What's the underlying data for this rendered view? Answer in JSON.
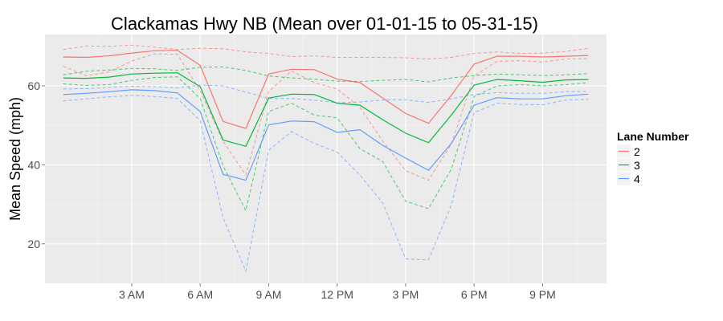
{
  "chart_data": {
    "type": "line",
    "title": "Clackamas Hwy NB (Mean over 01-01-15 to 05-31-15)",
    "xlabel": "",
    "ylabel": "Mean Speed (mph)",
    "hours": [
      0,
      1,
      2,
      3,
      4,
      5,
      6,
      7,
      8,
      9,
      10,
      11,
      12,
      13,
      14,
      15,
      16,
      17,
      18,
      19,
      20,
      21,
      22,
      23
    ],
    "xlim": [
      -0.8,
      23.8
    ],
    "ylim": [
      10,
      73
    ],
    "x_ticks": [
      {
        "value": 3,
        "label": "3 AM"
      },
      {
        "value": 6,
        "label": "6 AM"
      },
      {
        "value": 9,
        "label": "9 AM"
      },
      {
        "value": 12,
        "label": "12 PM"
      },
      {
        "value": 15,
        "label": "3 PM"
      },
      {
        "value": 18,
        "label": "6 PM"
      },
      {
        "value": 21,
        "label": "9 PM"
      }
    ],
    "y_ticks": [
      {
        "value": 20,
        "label": "20"
      },
      {
        "value": 40,
        "label": "40"
      },
      {
        "value": 60,
        "label": "60"
      }
    ],
    "grid": true,
    "legend": {
      "title": "Lane Number",
      "position": "right"
    },
    "series": [
      {
        "name": "2",
        "color": "#F8766D",
        "mean": [
          67.3,
          67.2,
          67.6,
          68.3,
          68.9,
          69.0,
          65.2,
          51.0,
          49.2,
          63.0,
          64.2,
          64.1,
          61.7,
          60.8,
          56.9,
          53.0,
          50.5,
          57.6,
          65.5,
          67.5,
          67.5,
          67.3,
          67.5,
          67.7
        ],
        "upper": [
          69.2,
          70.1,
          70.0,
          70.3,
          69.8,
          69.2,
          69.5,
          69.4,
          68.6,
          68.2,
          67.4,
          67.6,
          67.2,
          67.2,
          67.2,
          67.1,
          66.8,
          67.2,
          68.2,
          68.6,
          68.2,
          68.3,
          68.7,
          69.5
        ],
        "lower": [
          65.0,
          62.6,
          63.5,
          66.3,
          68.1,
          68.0,
          58.8,
          46.0,
          37.4,
          58.5,
          63.8,
          60.8,
          59.2,
          54.5,
          46.0,
          38.5,
          36.1,
          45.2,
          62.5,
          66.2,
          66.4,
          66.0,
          66.8,
          66.9
        ]
      },
      {
        "name": "3",
        "color": "#00BA38",
        "mean": [
          62.0,
          61.9,
          62.2,
          63.0,
          63.2,
          63.3,
          59.8,
          46.3,
          44.7,
          56.9,
          57.9,
          57.8,
          55.6,
          55.1,
          51.4,
          48.0,
          45.6,
          52.6,
          60.2,
          61.6,
          61.3,
          60.9,
          61.5,
          61.6
        ],
        "upper": [
          62.8,
          63.7,
          64.0,
          64.4,
          64.3,
          63.9,
          64.7,
          64.8,
          63.9,
          62.5,
          62.0,
          61.7,
          61.2,
          61.1,
          61.4,
          61.6,
          61.0,
          62.0,
          62.6,
          63.0,
          62.8,
          62.6,
          62.8,
          63.1
        ],
        "lower": [
          60.5,
          60.1,
          60.3,
          61.4,
          62.1,
          62.3,
          56.8,
          39.8,
          28.4,
          53.5,
          55.6,
          52.6,
          51.9,
          44.1,
          40.8,
          30.8,
          28.9,
          38.9,
          57.3,
          60.0,
          60.3,
          60.0,
          60.3,
          60.8
        ]
      },
      {
        "name": "4",
        "color": "#619CFF",
        "mean": [
          57.8,
          58.1,
          58.5,
          59.0,
          58.8,
          58.2,
          53.5,
          37.6,
          36.1,
          50.1,
          51.1,
          50.9,
          48.2,
          48.9,
          44.9,
          41.7,
          38.6,
          45.4,
          55.1,
          57.0,
          56.7,
          56.7,
          57.5,
          57.9
        ],
        "upper": [
          59.2,
          59.3,
          59.6,
          59.9,
          59.8,
          59.5,
          60.2,
          60.0,
          58.4,
          56.8,
          56.8,
          56.4,
          55.7,
          55.9,
          56.4,
          56.5,
          55.8,
          56.7,
          57.8,
          58.3,
          58.1,
          58.1,
          58.5,
          58.6
        ],
        "lower": [
          56.2,
          56.7,
          57.2,
          57.6,
          57.3,
          56.8,
          51.2,
          26.6,
          13.1,
          43.7,
          48.4,
          45.4,
          43.2,
          37.4,
          30.3,
          16.2,
          15.9,
          29.8,
          53.2,
          55.6,
          55.3,
          55.2,
          56.4,
          56.6
        ]
      }
    ]
  }
}
